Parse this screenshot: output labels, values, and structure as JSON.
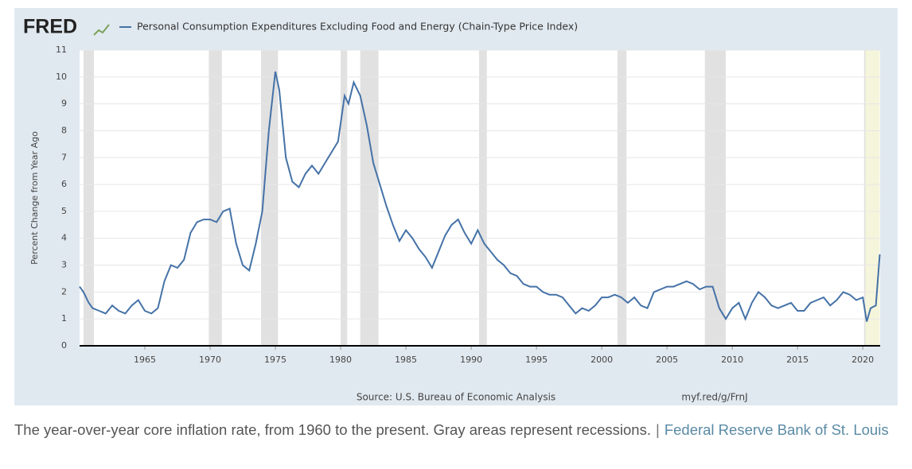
{
  "logo": "FRED",
  "chart_data": {
    "type": "line",
    "y_label": "Percent Change from Year Ago",
    "source": "Source: U.S. Bureau of Economic Analysis",
    "short_url": "myf.red/g/FrnJ",
    "x": [
      1960.0,
      1960.3,
      1960.7,
      1961.0,
      1961.5,
      1962.0,
      1962.5,
      1963.0,
      1963.5,
      1964.0,
      1964.5,
      1965.0,
      1965.5,
      1966.0,
      1966.5,
      1967.0,
      1967.5,
      1968.0,
      1968.5,
      1969.0,
      1969.5,
      1970.0,
      1970.5,
      1971.0,
      1971.5,
      1972.0,
      1972.5,
      1973.0,
      1973.5,
      1974.0,
      1974.5,
      1975.0,
      1975.3,
      1975.8,
      1976.3,
      1976.8,
      1977.3,
      1977.8,
      1978.3,
      1978.8,
      1979.3,
      1979.8,
      1980.3,
      1980.6,
      1981.0,
      1981.5,
      1982.0,
      1982.5,
      1983.0,
      1983.5,
      1984.0,
      1984.5,
      1985.0,
      1985.5,
      1986.0,
      1986.5,
      1987.0,
      1987.5,
      1988.0,
      1988.5,
      1989.0,
      1989.5,
      1990.0,
      1990.5,
      1991.0,
      1991.5,
      1992.0,
      1992.5,
      1993.0,
      1993.5,
      1994.0,
      1994.5,
      1995.0,
      1995.5,
      1996.0,
      1996.5,
      1997.0,
      1997.5,
      1998.0,
      1998.5,
      1999.0,
      1999.5,
      2000.0,
      2000.5,
      2001.0,
      2001.5,
      2002.0,
      2002.5,
      2003.0,
      2003.5,
      2004.0,
      2004.5,
      2005.0,
      2005.5,
      2006.0,
      2006.5,
      2007.0,
      2007.5,
      2008.0,
      2008.5,
      2009.0,
      2009.5,
      2010.0,
      2010.5,
      2011.0,
      2011.5,
      2012.0,
      2012.5,
      2013.0,
      2013.5,
      2014.0,
      2014.5,
      2015.0,
      2015.5,
      2016.0,
      2016.5,
      2017.0,
      2017.5,
      2018.0,
      2018.5,
      2019.0,
      2019.5,
      2020.0,
      2020.3,
      2020.6,
      2021.0,
      2021.3
    ],
    "series": [
      {
        "name": "Personal Consumption Expenditures Excluding Food and Energy (Chain-Type Price Index)",
        "color": "#4572a7",
        "values": [
          2.2,
          2.0,
          1.6,
          1.4,
          1.3,
          1.2,
          1.5,
          1.3,
          1.2,
          1.5,
          1.7,
          1.3,
          1.2,
          1.4,
          2.4,
          3.0,
          2.9,
          3.2,
          4.2,
          4.6,
          4.7,
          4.7,
          4.6,
          5.0,
          5.1,
          3.8,
          3.0,
          2.8,
          3.8,
          5.0,
          8.0,
          10.2,
          9.5,
          7.0,
          6.1,
          5.9,
          6.4,
          6.7,
          6.4,
          6.8,
          7.2,
          7.6,
          9.3,
          9.0,
          9.8,
          9.3,
          8.2,
          6.8,
          6.0,
          5.2,
          4.5,
          3.9,
          4.3,
          4.0,
          3.6,
          3.3,
          2.9,
          3.5,
          4.1,
          4.5,
          4.7,
          4.2,
          3.8,
          4.3,
          3.8,
          3.5,
          3.2,
          3.0,
          2.7,
          2.6,
          2.3,
          2.2,
          2.2,
          2.0,
          1.9,
          1.9,
          1.8,
          1.5,
          1.2,
          1.4,
          1.3,
          1.5,
          1.8,
          1.8,
          1.9,
          1.8,
          1.6,
          1.8,
          1.5,
          1.4,
          2.0,
          2.1,
          2.2,
          2.2,
          2.3,
          2.4,
          2.3,
          2.1,
          2.2,
          2.2,
          1.4,
          1.0,
          1.4,
          1.6,
          1.0,
          1.6,
          2.0,
          1.8,
          1.5,
          1.4,
          1.5,
          1.6,
          1.3,
          1.3,
          1.6,
          1.7,
          1.8,
          1.5,
          1.7,
          2.0,
          1.9,
          1.7,
          1.8,
          0.9,
          1.4,
          1.5,
          3.4
        ]
      }
    ],
    "recessions": [
      [
        1960.3,
        1961.1
      ],
      [
        1969.9,
        1970.9
      ],
      [
        1973.9,
        1975.2
      ],
      [
        1980.0,
        1980.5
      ],
      [
        1981.5,
        1982.9
      ],
      [
        1990.6,
        1991.2
      ],
      [
        2001.2,
        2001.9
      ],
      [
        2007.9,
        2009.5
      ],
      [
        2020.1,
        2020.4
      ]
    ],
    "recession_color": "#e1e1e1",
    "highlight": [
      2020.2,
      2021.3
    ],
    "highlight_color": "#f5f5dc",
    "xlim": [
      1960,
      2021.33
    ],
    "xticks": [
      1965,
      1970,
      1975,
      1980,
      1985,
      1990,
      1995,
      2000,
      2005,
      2010,
      2015,
      2020
    ],
    "ylim": [
      0,
      11
    ],
    "yticks": [
      0,
      1,
      2,
      3,
      4,
      5,
      6,
      7,
      8,
      9,
      10,
      11
    ],
    "grid": true
  },
  "caption": {
    "text": "The year-over-year core inflation rate, from 1960 to the present. Gray areas represent recessions.",
    "separator": "|",
    "credit": "Federal Reserve Bank of St. Louis"
  }
}
